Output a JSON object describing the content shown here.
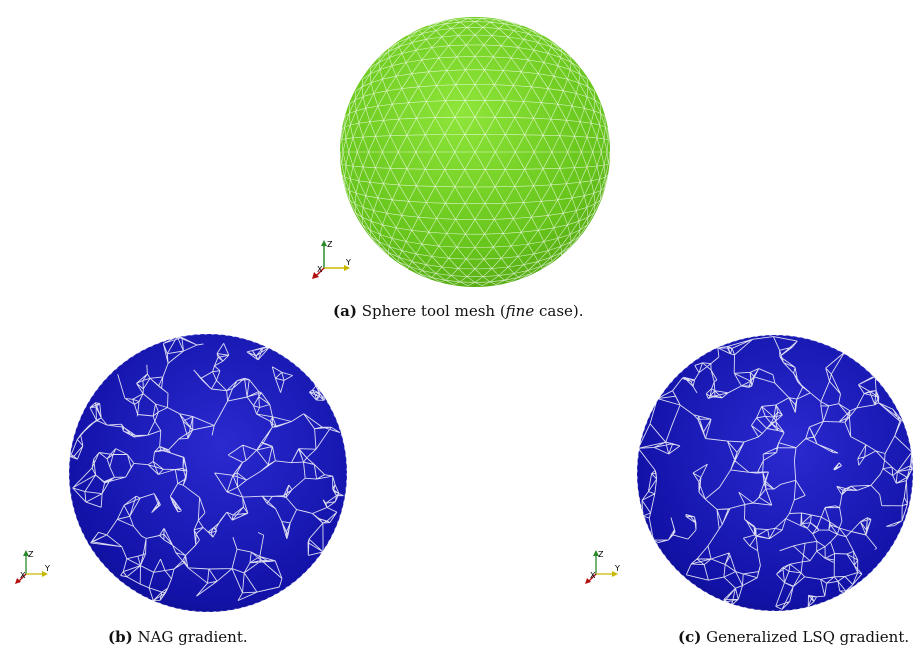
{
  "figure": {
    "panels": [
      {
        "tag": "(a)",
        "caption_pre": "Sphere tool mesh (",
        "caption_em": "fine",
        "caption_post": " case).",
        "sphere_color": "#6fcf1f",
        "axes": {
          "z": "Z",
          "x": "X",
          "y": "Y"
        }
      },
      {
        "tag": "(b)",
        "caption": "NAG gradient.",
        "sphere_color": "#10109a",
        "axes": {
          "z": "Z",
          "x": "X",
          "y": "Y"
        }
      },
      {
        "tag": "(c)",
        "caption": "Generalized LSQ gradient.",
        "sphere_color": "#10109a",
        "axes": {
          "z": "Z",
          "x": "X",
          "y": "Y"
        }
      }
    ]
  }
}
